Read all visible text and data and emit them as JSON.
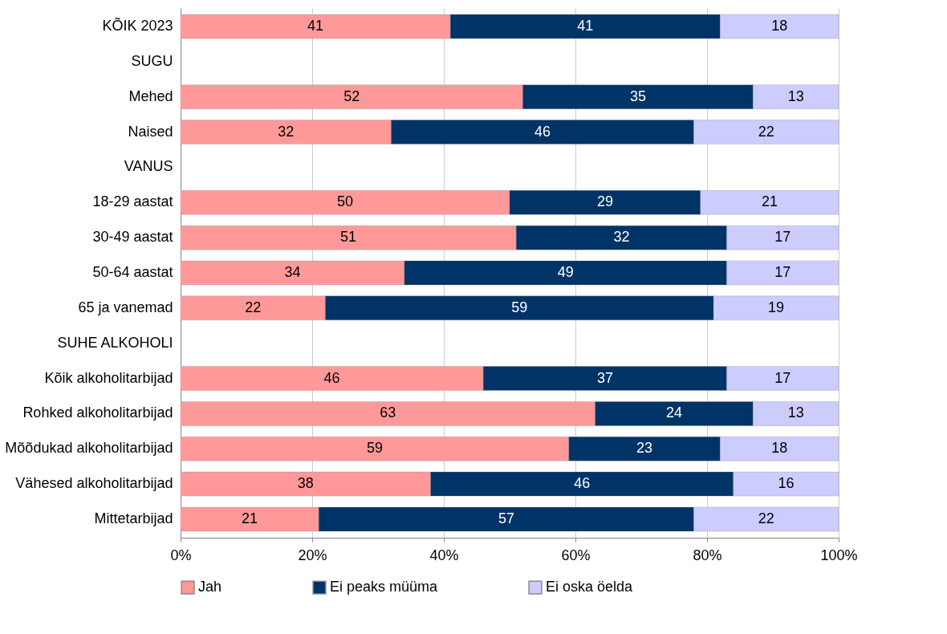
{
  "chart_data": {
    "type": "bar",
    "orientation": "horizontal",
    "stacked": true,
    "data_labels": true,
    "grid": "x",
    "legend": "bottom",
    "categories": [
      "KÕIK 2023",
      "SUGU",
      "Mehed",
      "Naised",
      "VANUS",
      "18-29 aastat",
      "30-49 aastat",
      "50-64 aastat",
      "65 ja vanemad",
      "SUHE ALKOHOLI",
      "Kõik alkoholitarbijad",
      "Rohked alkoholitarbijad",
      "Mõõdukad alkoholitarbijad",
      "Vähesed alkoholitarbijad",
      "Mittetarbijad"
    ],
    "series": [
      {
        "name": "Jah",
        "color": "#ff9999",
        "values": [
          41,
          null,
          52,
          32,
          null,
          50,
          51,
          34,
          22,
          null,
          46,
          63,
          59,
          38,
          21
        ]
      },
      {
        "name": "Ei peaks müüma",
        "color": "#003366",
        "values": [
          41,
          null,
          35,
          46,
          null,
          29,
          32,
          49,
          59,
          null,
          37,
          24,
          23,
          46,
          57
        ]
      },
      {
        "name": "Ei oska öelda",
        "color": "#ccccff",
        "values": [
          18,
          null,
          13,
          22,
          null,
          21,
          17,
          17,
          19,
          null,
          17,
          13,
          18,
          16,
          22
        ]
      }
    ],
    "xlim": [
      0,
      100
    ],
    "xticks": [
      {
        "value": 0,
        "label": "0%"
      },
      {
        "value": 20,
        "label": "20%"
      },
      {
        "value": 40,
        "label": "40%"
      },
      {
        "value": 60,
        "label": "60%"
      },
      {
        "value": 80,
        "label": "80%"
      },
      {
        "value": 100,
        "label": "100%"
      }
    ]
  }
}
